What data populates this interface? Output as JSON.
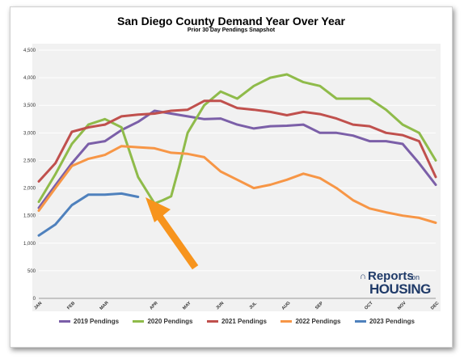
{
  "chart_data": {
    "type": "line",
    "title": "San Diego County Demand Year Over Year",
    "subtitle": "Prior 30 Day Pendings Snapshot",
    "xlabel": "",
    "ylabel": "",
    "ylim": [
      0,
      4500
    ],
    "yticks": [
      "0",
      "500",
      "1,000",
      "1,500",
      "2,000",
      "2,500",
      "3,000",
      "3,500",
      "4,000",
      "4,500"
    ],
    "x_tick_labels": [
      "JAN",
      "FEB",
      "MAR",
      "APR",
      "MAY",
      "JUN",
      "JUL",
      "AUG",
      "SEP",
      "OCT",
      "NOV",
      "DEC"
    ],
    "x_tick_positions": [
      0,
      2,
      4,
      7,
      9,
      11,
      13,
      15,
      17,
      20,
      22,
      24
    ],
    "xlim": [
      0,
      24
    ],
    "grid": "horizontal",
    "legend_position": "bottom",
    "series": [
      {
        "name": "2019 Pendings",
        "color": "#7b5fa8",
        "x": [
          0,
          1,
          2,
          3,
          4,
          5,
          6,
          7,
          8,
          9,
          10,
          11,
          12,
          13,
          14,
          15,
          16,
          17,
          18,
          19,
          20,
          21,
          22,
          23,
          24
        ],
        "values": [
          1640,
          2050,
          2450,
          2800,
          2850,
          3050,
          3200,
          3400,
          3350,
          3300,
          3250,
          3260,
          3150,
          3080,
          3120,
          3130,
          3150,
          3000,
          3000,
          2950,
          2850,
          2850,
          2800,
          2450,
          2060
        ]
      },
      {
        "name": "2020 Pendings",
        "color": "#8fbb4a",
        "x": [
          0,
          1,
          2,
          3,
          4,
          5,
          6,
          7,
          7.5,
          8,
          8.5,
          9,
          10,
          11,
          12,
          13,
          14,
          15,
          16,
          17,
          18,
          19,
          20,
          21,
          22,
          23,
          24
        ],
        "values": [
          1750,
          2250,
          2800,
          3150,
          3250,
          3100,
          2200,
          1720,
          1780,
          1850,
          2400,
          3000,
          3500,
          3750,
          3620,
          3850,
          4000,
          4060,
          3920,
          3850,
          3620,
          3620,
          3620,
          3420,
          3150,
          3000,
          2500
        ]
      },
      {
        "name": "2021 Pendings",
        "color": "#c0504d",
        "x": [
          0,
          1,
          2,
          3,
          4,
          5,
          6,
          7,
          8,
          9,
          10,
          11,
          12,
          13,
          14,
          15,
          16,
          17,
          18,
          19,
          20,
          21,
          22,
          23,
          24
        ],
        "values": [
          2120,
          2450,
          3020,
          3100,
          3150,
          3300,
          3330,
          3350,
          3400,
          3420,
          3580,
          3580,
          3450,
          3420,
          3380,
          3320,
          3380,
          3340,
          3260,
          3150,
          3120,
          3000,
          2960,
          2850,
          2200
        ]
      },
      {
        "name": "2022 Pendings",
        "color": "#f79646",
        "x": [
          0,
          1,
          2,
          3,
          4,
          5,
          6,
          7,
          8,
          9,
          10,
          11,
          12,
          13,
          14,
          15,
          16,
          17,
          18,
          19,
          20,
          21,
          22,
          23,
          24
        ],
        "values": [
          1590,
          2000,
          2400,
          2530,
          2600,
          2760,
          2740,
          2720,
          2640,
          2620,
          2560,
          2300,
          2150,
          2000,
          2060,
          2150,
          2260,
          2180,
          2000,
          1780,
          1630,
          1560,
          1500,
          1460,
          1370
        ]
      },
      {
        "name": "2023 Pendings",
        "color": "#4f81bd",
        "x": [
          0,
          1,
          2,
          3,
          4,
          5,
          6
        ],
        "values": [
          1140,
          1340,
          1690,
          1880,
          1880,
          1900,
          1840
        ]
      }
    ],
    "annotation": {
      "type": "arrow",
      "color": "#f7941d",
      "points_to_x": 6.6,
      "points_to_y": 1750
    }
  },
  "logo": {
    "line1": "Reports",
    "line1_small": "on",
    "line2": "HOUSING"
  }
}
